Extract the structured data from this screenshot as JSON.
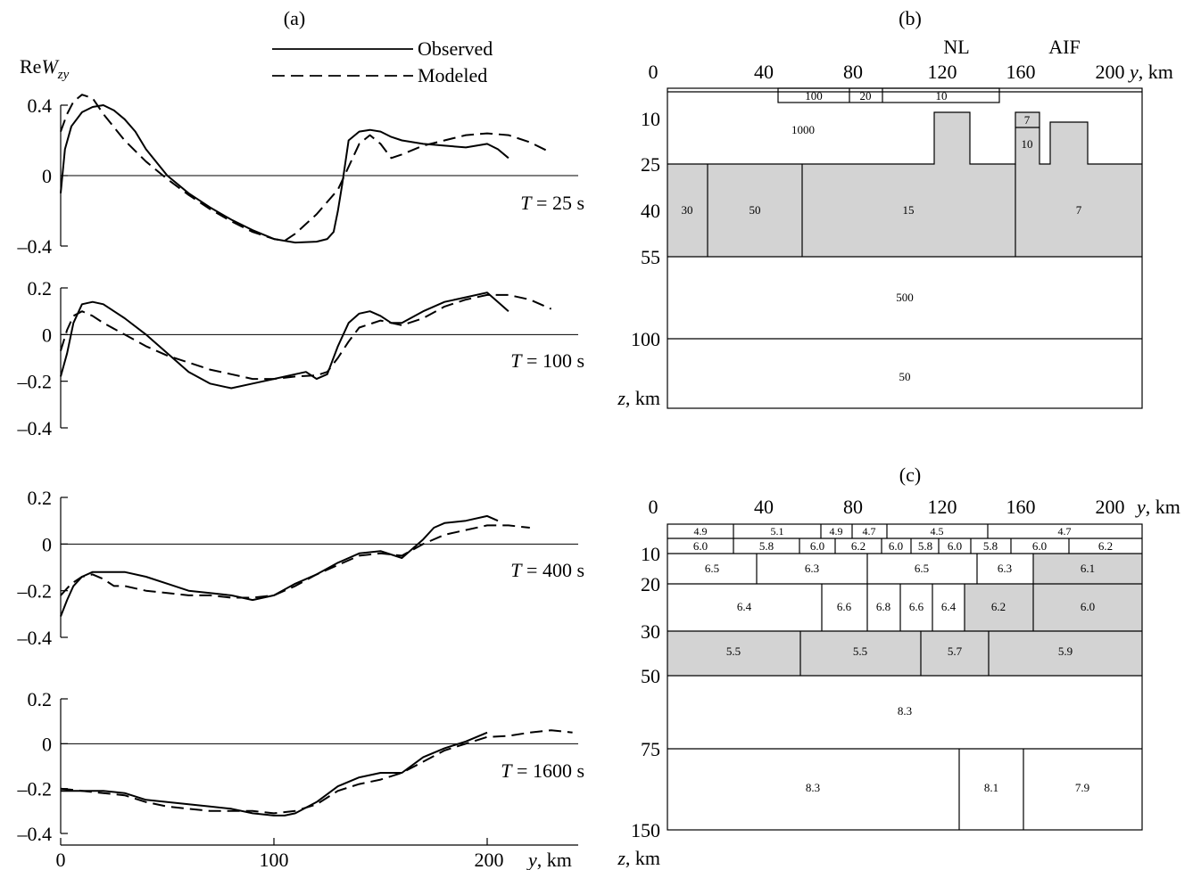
{
  "panel_a": {
    "label": "(a)",
    "ylabel_main": "Re",
    "ylabel_italic": "W",
    "ylabel_sub": "zy",
    "legend": {
      "observed": "Observed",
      "modeled": "Modeled"
    },
    "x_axis": {
      "ticks": [
        "0",
        "100",
        "200"
      ],
      "unit_italic": "y",
      "unit": ", km"
    }
  },
  "chart_data": [
    {
      "type": "line",
      "title": "T = 25 s",
      "ylim": [
        -0.4,
        0.4
      ],
      "yticks": [
        "0.4",
        "0",
        "–0.4"
      ],
      "series": [
        {
          "name": "Observed",
          "x": [
            0,
            2,
            5,
            10,
            15,
            20,
            25,
            30,
            35,
            40,
            50,
            60,
            70,
            80,
            90,
            100,
            110,
            120,
            125,
            128,
            130,
            132,
            135,
            140,
            145,
            150,
            155,
            160,
            170,
            180,
            190,
            200,
            205,
            210
          ],
          "y": [
            -0.1,
            0.15,
            0.28,
            0.36,
            0.39,
            0.4,
            0.37,
            0.32,
            0.25,
            0.15,
            0.0,
            -0.1,
            -0.18,
            -0.25,
            -0.31,
            -0.36,
            -0.38,
            -0.375,
            -0.36,
            -0.32,
            -0.2,
            -0.05,
            0.2,
            0.25,
            0.26,
            0.25,
            0.22,
            0.2,
            0.18,
            0.17,
            0.16,
            0.18,
            0.15,
            0.1
          ]
        },
        {
          "name": "Modeled",
          "x": [
            0,
            3,
            6,
            10,
            15,
            20,
            30,
            40,
            50,
            60,
            70,
            80,
            90,
            100,
            105,
            110,
            120,
            130,
            135,
            140,
            145,
            150,
            155,
            160,
            170,
            180,
            190,
            200,
            210,
            220,
            230
          ],
          "y": [
            0.25,
            0.35,
            0.42,
            0.46,
            0.44,
            0.35,
            0.2,
            0.08,
            -0.02,
            -0.11,
            -0.19,
            -0.26,
            -0.32,
            -0.36,
            -0.37,
            -0.33,
            -0.22,
            -0.08,
            0.05,
            0.18,
            0.23,
            0.18,
            0.1,
            0.12,
            0.17,
            0.2,
            0.23,
            0.24,
            0.23,
            0.19,
            0.13
          ]
        }
      ]
    },
    {
      "type": "line",
      "title": "T = 100 s",
      "ylim": [
        -0.4,
        0.2
      ],
      "yticks": [
        "0.2",
        "0",
        "–0.2",
        "–0.4"
      ],
      "series": [
        {
          "name": "Observed",
          "x": [
            0,
            3,
            6,
            10,
            15,
            20,
            25,
            30,
            40,
            50,
            60,
            70,
            80,
            90,
            100,
            110,
            115,
            120,
            125,
            130,
            135,
            140,
            145,
            150,
            155,
            160,
            170,
            180,
            190,
            200,
            205,
            210
          ],
          "y": [
            -0.18,
            -0.08,
            0.05,
            0.13,
            0.14,
            0.13,
            0.1,
            0.07,
            0.0,
            -0.08,
            -0.16,
            -0.21,
            -0.23,
            -0.21,
            -0.19,
            -0.17,
            -0.16,
            -0.19,
            -0.17,
            -0.05,
            0.05,
            0.09,
            0.1,
            0.08,
            0.05,
            0.05,
            0.1,
            0.14,
            0.16,
            0.18,
            0.14,
            0.1
          ]
        },
        {
          "name": "Modeled",
          "x": [
            0,
            3,
            6,
            10,
            15,
            20,
            30,
            40,
            50,
            60,
            70,
            80,
            90,
            100,
            110,
            120,
            125,
            130,
            135,
            140,
            150,
            160,
            170,
            180,
            190,
            200,
            210,
            220,
            230
          ],
          "y": [
            -0.07,
            0.02,
            0.08,
            0.1,
            0.08,
            0.05,
            0.0,
            -0.05,
            -0.09,
            -0.12,
            -0.15,
            -0.17,
            -0.19,
            -0.19,
            -0.18,
            -0.175,
            -0.16,
            -0.1,
            -0.03,
            0.03,
            0.06,
            0.04,
            0.07,
            0.12,
            0.15,
            0.17,
            0.17,
            0.15,
            0.11
          ]
        }
      ]
    },
    {
      "type": "line",
      "title": "T = 400 s",
      "ylim": [
        -0.4,
        0.2
      ],
      "yticks": [
        "0.2",
        "0",
        "–0.2",
        "–0.4"
      ],
      "series": [
        {
          "name": "Observed",
          "x": [
            0,
            3,
            6,
            10,
            15,
            20,
            30,
            40,
            50,
            60,
            70,
            80,
            90,
            100,
            110,
            120,
            130,
            140,
            150,
            160,
            170,
            175,
            180,
            190,
            200,
            205
          ],
          "y": [
            -0.31,
            -0.24,
            -0.18,
            -0.14,
            -0.12,
            -0.12,
            -0.12,
            -0.14,
            -0.17,
            -0.2,
            -0.21,
            -0.22,
            -0.24,
            -0.22,
            -0.17,
            -0.13,
            -0.08,
            -0.04,
            -0.03,
            -0.06,
            0.02,
            0.07,
            0.09,
            0.1,
            0.12,
            0.1
          ]
        },
        {
          "name": "Modeled",
          "x": [
            0,
            5,
            10,
            15,
            20,
            25,
            30,
            40,
            50,
            60,
            70,
            80,
            90,
            100,
            110,
            120,
            130,
            140,
            150,
            160,
            170,
            180,
            190,
            200,
            210,
            220
          ],
          "y": [
            -0.22,
            -0.17,
            -0.14,
            -0.13,
            -0.15,
            -0.18,
            -0.18,
            -0.2,
            -0.21,
            -0.22,
            -0.22,
            -0.23,
            -0.23,
            -0.22,
            -0.18,
            -0.13,
            -0.09,
            -0.05,
            -0.04,
            -0.05,
            0.0,
            0.04,
            0.06,
            0.08,
            0.08,
            0.07
          ]
        }
      ]
    },
    {
      "type": "line",
      "title": "T = 1600 s",
      "ylim": [
        -0.4,
        0.2
      ],
      "yticks": [
        "0.2",
        "0",
        "–0.2",
        "–0.4"
      ],
      "series": [
        {
          "name": "Observed",
          "x": [
            0,
            10,
            20,
            30,
            40,
            50,
            60,
            70,
            80,
            90,
            100,
            105,
            110,
            120,
            130,
            140,
            150,
            160,
            170,
            180,
            190,
            200
          ],
          "y": [
            -0.21,
            -0.21,
            -0.21,
            -0.22,
            -0.25,
            -0.26,
            -0.27,
            -0.28,
            -0.29,
            -0.31,
            -0.32,
            -0.32,
            -0.31,
            -0.26,
            -0.19,
            -0.15,
            -0.13,
            -0.13,
            -0.06,
            -0.02,
            0.01,
            0.05
          ]
        },
        {
          "name": "Modeled",
          "x": [
            0,
            10,
            20,
            30,
            40,
            50,
            60,
            70,
            80,
            90,
            100,
            110,
            120,
            130,
            140,
            150,
            160,
            170,
            180,
            190,
            200,
            210,
            220,
            230,
            240
          ],
          "y": [
            -0.2,
            -0.21,
            -0.22,
            -0.23,
            -0.26,
            -0.28,
            -0.29,
            -0.3,
            -0.3,
            -0.3,
            -0.31,
            -0.3,
            -0.27,
            -0.21,
            -0.18,
            -0.16,
            -0.13,
            -0.08,
            -0.03,
            0.0,
            0.03,
            0.035,
            0.05,
            0.06,
            0.05
          ]
        }
      ]
    }
  ],
  "panel_b": {
    "label": "(b)",
    "markers": [
      "NL",
      "AIF"
    ],
    "x_ticks": [
      "0",
      "40",
      "80",
      "120",
      "160",
      "200"
    ],
    "x_unit_italic": "y",
    "x_unit": ", km",
    "z_ticks": [
      "10",
      "25",
      "40",
      "55",
      "100"
    ],
    "z_unit_italic": "z",
    "z_unit": ", km",
    "values": {
      "top": [
        "100",
        "20",
        "10"
      ],
      "background": "1000",
      "anomaly_a": "7",
      "anomaly_b": "10",
      "layer": [
        "30",
        "50",
        "15",
        "7"
      ],
      "lower": "500",
      "bottom": "50"
    }
  },
  "panel_c": {
    "label": "(c)",
    "x_ticks": [
      "0",
      "40",
      "80",
      "120",
      "160",
      "200"
    ],
    "x_unit_italic": "y",
    "x_unit": ", km",
    "z_ticks": [
      "10",
      "20",
      "30",
      "50",
      "75",
      "150"
    ],
    "z_unit_italic": "z",
    "z_unit": ", km",
    "row1": [
      "4.9",
      "5.1",
      "4.9",
      "4.7",
      "4.5",
      "4.7"
    ],
    "row2": [
      "6.0",
      "5.8",
      "6.0",
      "6.2",
      "6.0",
      "5.8",
      "6.0",
      "5.8",
      "6.0",
      "6.2"
    ],
    "row3": [
      "6.5",
      "6.3",
      "6.5",
      "6.3",
      "6.1"
    ],
    "row4": [
      "6.4",
      "6.6",
      "6.8",
      "6.6",
      "6.4",
      "6.2",
      "6.0"
    ],
    "row5": [
      "5.5",
      "5.5",
      "5.7",
      "5.9"
    ],
    "row6": "8.3",
    "row7": [
      "8.3",
      "8.1",
      "7.9"
    ]
  }
}
